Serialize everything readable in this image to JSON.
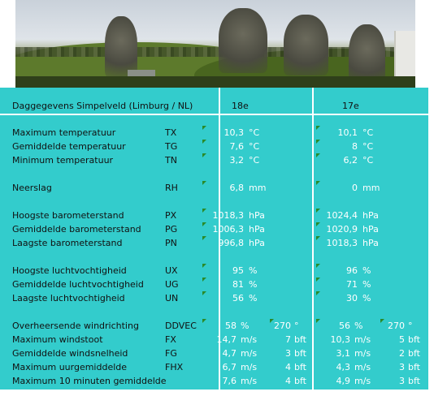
{
  "header": {
    "title": "Daggegevens Simpelveld (Limburg / NL)",
    "col1": "18e",
    "col2": "17e"
  },
  "rows": [
    {
      "label": "Maximum temperatuur",
      "code": "TX",
      "v1": "10,3",
      "u1": "°C",
      "v2": "10,1",
      "u2": "°C"
    },
    {
      "label": "Gemiddelde temperatuur",
      "code": "TG",
      "v1": "7,6",
      "u1": "°C",
      "v2": "8",
      "u2": "°C"
    },
    {
      "label": "Minimum temperatuur",
      "code": "TN",
      "v1": "3,2",
      "u1": "°C",
      "v2": "6,2",
      "u2": "°C"
    },
    {
      "label": "Neerslag",
      "code": "RH",
      "v1": "6,8",
      "u1": "mm",
      "v2": "0",
      "u2": "mm"
    },
    {
      "label": "Hoogste barometerstand",
      "code": "PX",
      "v1": "1018,3",
      "u1": "hPa",
      "v2": "1024,4",
      "u2": "hPa"
    },
    {
      "label": "Gemiddelde barometerstand",
      "code": "PG",
      "v1": "1006,3",
      "u1": "hPa",
      "v2": "1020,9",
      "u2": "hPa"
    },
    {
      "label": "Laagste barometerstand",
      "code": "PN",
      "v1": "996,8",
      "u1": "hPa",
      "v2": "1018,3",
      "u2": "hPa"
    },
    {
      "label": "Hoogste luchtvochtigheid",
      "code": "UX",
      "v1": "95",
      "u1": "%",
      "v2": "96",
      "u2": "%"
    },
    {
      "label": "Gemiddelde luchtvochtigheid",
      "code": "UG",
      "v1": "81",
      "u1": "%",
      "v2": "71",
      "u2": "%"
    },
    {
      "label": "Laagste luchtvochtigheid",
      "code": "UN",
      "v1": "56",
      "u1": "%",
      "v2": "30",
      "u2": "%"
    },
    {
      "label": "Overheersende windrichting",
      "code": "DDVEC",
      "v1": "58",
      "u1": "%",
      "e1": "270",
      "eu1": "°",
      "v2": "56",
      "u2": "%",
      "e2": "270",
      "eu2": "°"
    },
    {
      "label": "Maximum windstoot",
      "code": "FX",
      "v1": "14,7",
      "u1": "m/s",
      "e1": "7",
      "eu1": "bft",
      "v2": "10,3",
      "u2": "m/s",
      "e2": "5",
      "eu2": "bft"
    },
    {
      "label": "Gemiddelde windsnelheid",
      "code": "FG",
      "v1": "4,7",
      "u1": "m/s",
      "e1": "3",
      "eu1": "bft",
      "v2": "3,1",
      "u2": "m/s",
      "e2": "2",
      "eu2": "bft"
    },
    {
      "label": "Maximum uurgemiddelde",
      "code": "FHX",
      "v1": "6,7",
      "u1": "m/s",
      "e1": "4",
      "eu1": "bft",
      "v2": "4,3",
      "u2": "m/s",
      "e2": "3",
      "eu2": "bft"
    },
    {
      "label": "Maximum 10 minuten gemiddelde",
      "code": "",
      "v1": "7,6",
      "u1": "m/s",
      "e1": "4",
      "eu1": "bft",
      "v2": "4,9",
      "u2": "m/s",
      "e2": "3",
      "eu2": "bft"
    }
  ],
  "colors": {
    "panel": "#33cccc",
    "value_text": "#ffffff",
    "label_text": "#111111",
    "comment_marker": "#2a8a2a"
  }
}
